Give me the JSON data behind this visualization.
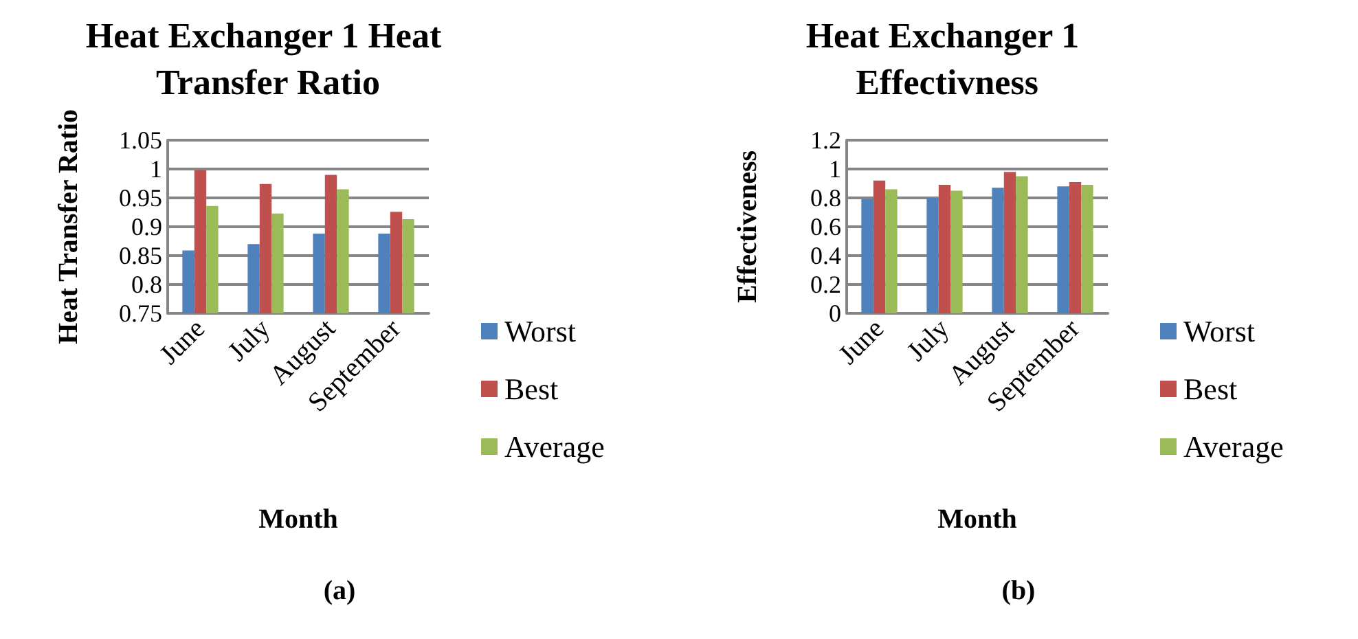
{
  "chart_data": [
    {
      "type": "bar",
      "title": "Heat Exchanger 1 Heat Transfer Ratio",
      "xlabel": "Month",
      "ylabel": "Heat Transfer Ratio",
      "categories": [
        "June",
        "July",
        "August",
        "September"
      ],
      "series": [
        {
          "name": "Worst",
          "color": "#4f81bd",
          "values": [
            0.859,
            0.87,
            0.888,
            0.888
          ]
        },
        {
          "name": "Best",
          "color": "#c0504d",
          "values": [
            0.998,
            0.974,
            0.99,
            0.926
          ]
        },
        {
          "name": "Average",
          "color": "#9bbb59",
          "values": [
            0.936,
            0.923,
            0.965,
            0.913
          ]
        }
      ],
      "ylim": [
        0.75,
        1.05
      ],
      "yticks": [
        0.75,
        0.8,
        0.85,
        0.9,
        0.95,
        1,
        1.05
      ],
      "grid": "y",
      "legend": "right",
      "annotations": [
        "(a)"
      ]
    },
    {
      "type": "bar",
      "title": "Heat Exchanger 1 Effectivness",
      "xlabel": "Month",
      "ylabel": "Effectiveness",
      "categories": [
        "June",
        "July",
        "August",
        "September"
      ],
      "series": [
        {
          "name": "Worst",
          "color": "#4f81bd",
          "values": [
            0.79,
            0.8,
            0.87,
            0.88
          ]
        },
        {
          "name": "Best",
          "color": "#c0504d",
          "values": [
            0.92,
            0.89,
            0.98,
            0.91
          ]
        },
        {
          "name": "Average",
          "color": "#9bbb59",
          "values": [
            0.86,
            0.85,
            0.95,
            0.89
          ]
        }
      ],
      "ylim": [
        0,
        1.2
      ],
      "yticks": [
        0,
        0.2,
        0.4,
        0.6,
        0.8,
        1,
        1.2
      ],
      "grid": "y",
      "legend": "right",
      "annotations": [
        "(b)"
      ]
    }
  ]
}
